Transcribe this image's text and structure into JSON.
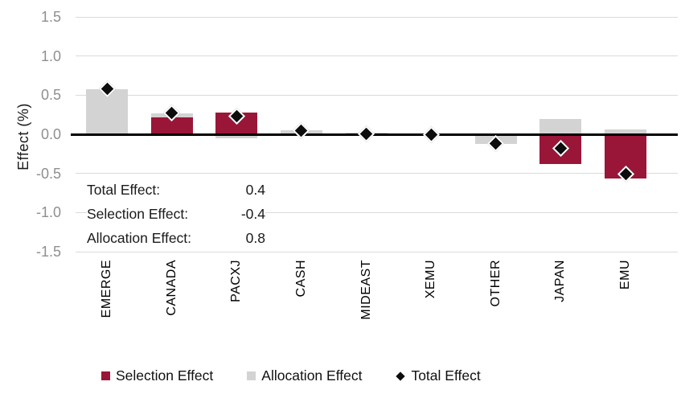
{
  "chart_data": {
    "type": "bar",
    "subtype": "stacked-with-total-markers",
    "title": "",
    "xlabel": "",
    "ylabel": "Effect (%)",
    "ylim": [
      -1.5,
      1.5
    ],
    "yticks": [
      "1.5",
      "1.0",
      "0.5",
      "0.0",
      "-0.5",
      "-1.0",
      "-1.5"
    ],
    "grid": true,
    "legend_position": "bottom",
    "categories": [
      "EMERGE",
      "CANADA",
      "PACXJ",
      "CASH",
      "MIDEAST",
      "XEMU",
      "OTHER",
      "JAPAN",
      "EMU"
    ],
    "series": [
      {
        "name": "Selection Effect",
        "color": "#9a1638",
        "values": [
          0.0,
          0.22,
          0.28,
          0.0,
          0.0,
          0.0,
          -0.02,
          -0.38,
          -0.57
        ]
      },
      {
        "name": "Allocation Effect",
        "color": "#d3d3d3",
        "values": [
          0.58,
          0.05,
          -0.05,
          0.05,
          0.02,
          0.0,
          -0.1,
          0.2,
          0.06
        ]
      }
    ],
    "totals": {
      "name": "Total Effect",
      "marker": "diamond",
      "color": "#0d0d0d",
      "values": [
        0.58,
        0.27,
        0.23,
        0.05,
        0.01,
        0.0,
        -0.12,
        -0.18,
        -0.51
      ]
    },
    "annotations": [
      {
        "label": "Total Effect:",
        "value": "0.4"
      },
      {
        "label": "Selection Effect:",
        "value": "-0.4"
      },
      {
        "label": "Allocation Effect:",
        "value": "0.8"
      }
    ],
    "legend": [
      {
        "label": "Selection Effect",
        "marker": "square",
        "color": "#9a1638"
      },
      {
        "label": "Allocation Effect",
        "marker": "square",
        "color": "#d3d3d3"
      },
      {
        "label": "Total Effect",
        "marker": "diamond",
        "color": "#0d0d0d"
      }
    ]
  },
  "colors": {
    "selection": "#9a1638",
    "allocation": "#d3d3d3",
    "total_marker": "#0d0d0d",
    "gridline": "#dadada",
    "zero_axis": "#000000",
    "tick_text": "#8f8f8f",
    "label_text": "#111111",
    "background": "#ffffff"
  }
}
